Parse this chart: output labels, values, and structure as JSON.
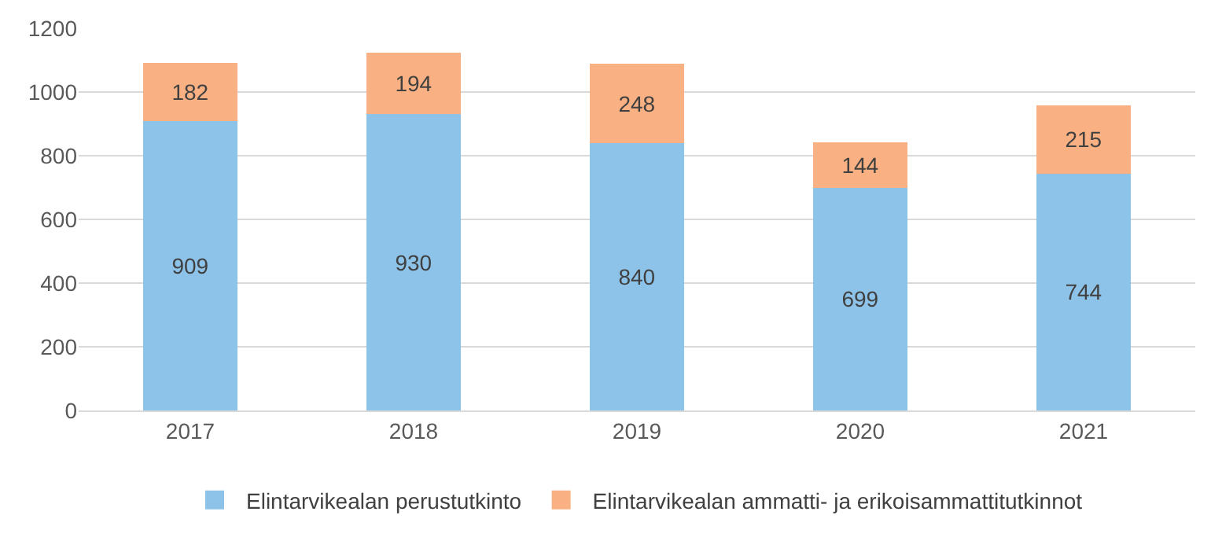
{
  "chart_data": {
    "type": "bar",
    "stacked": true,
    "categories": [
      "2017",
      "2018",
      "2019",
      "2020",
      "2021"
    ],
    "series": [
      {
        "name": "Elintarvikealan perustutkinto",
        "color": "#8dc3e8",
        "values": [
          909,
          930,
          840,
          699,
          744
        ]
      },
      {
        "name": "Elintarvikealan ammatti- ja erikoisammattitutkinnot",
        "color": "#f9b183",
        "values": [
          182,
          194,
          248,
          144,
          215
        ]
      }
    ],
    "ylim": [
      0,
      1200
    ],
    "yticks": [
      0,
      200,
      400,
      600,
      800,
      1000,
      1200
    ],
    "grid": "y",
    "legend": "bottom",
    "data_labels": true
  }
}
